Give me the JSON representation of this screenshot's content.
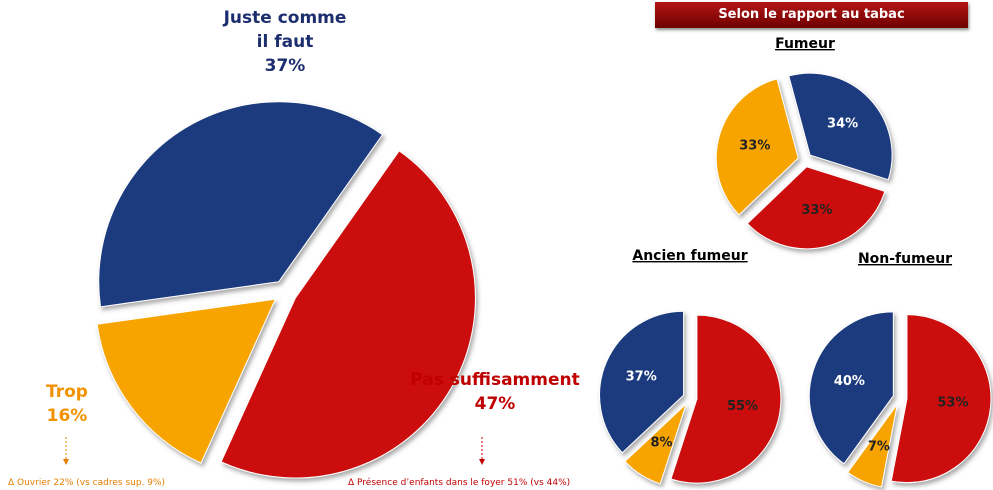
{
  "header": "Selon le rapport au tabac",
  "chart_data": [
    {
      "type": "pie",
      "categories": [
        "Juste comme il faut",
        "Pas suffisamment",
        "Trop"
      ],
      "values": [
        37,
        47,
        16
      ],
      "value_labels": [
        "37%",
        "47%",
        "16%"
      ],
      "colors": [
        "#1c3a7e",
        "#cc1010",
        "#f7a400"
      ],
      "annotations": [
        "Δ    Ouvrier 22% (vs cadres sup. 9%)",
        "Δ    Présence d’enfants dans le foyer 51% (vs 44%)"
      ]
    },
    {
      "type": "pie",
      "title": "Fumeur",
      "values": [
        34,
        33,
        33
      ],
      "value_labels": [
        "34%",
        "33%",
        "33%"
      ],
      "colors": [
        "#1c3a7e",
        "#cc1010",
        "#f7a400"
      ]
    },
    {
      "type": "pie",
      "title": "Ancien fumeur",
      "values": [
        55,
        8,
        37
      ],
      "value_labels": [
        "55%",
        "8%",
        "37%"
      ],
      "colors": [
        "#cc1010",
        "#f7a400",
        "#1c3a7e"
      ]
    },
    {
      "type": "pie",
      "title": "Non-fumeur",
      "values": [
        53,
        7,
        40
      ],
      "value_labels": [
        "53%",
        "7%",
        "40%"
      ],
      "colors": [
        "#cc1010",
        "#f7a400",
        "#1c3a7e"
      ]
    }
  ]
}
